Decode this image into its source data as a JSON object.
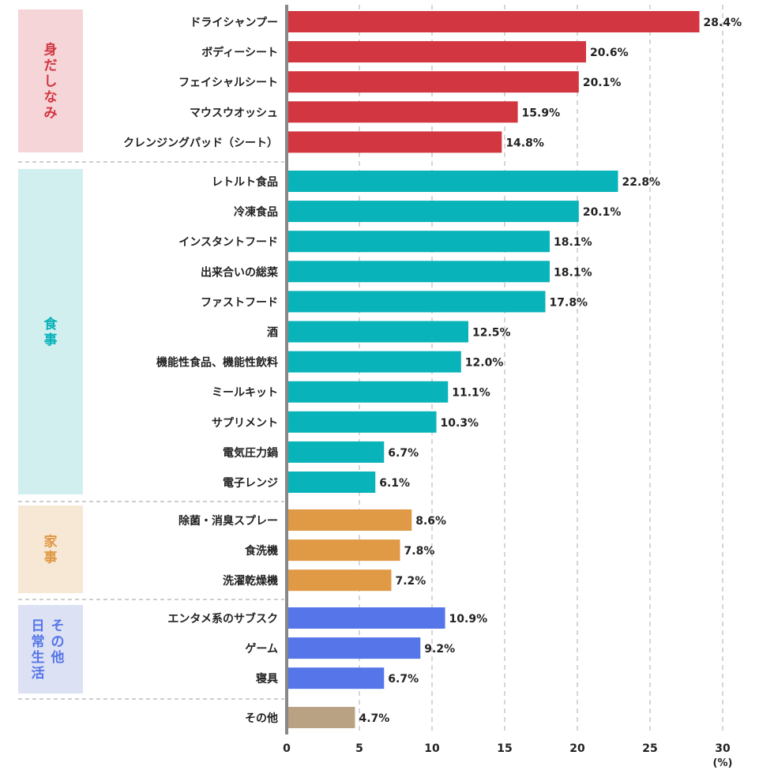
{
  "chart_data": {
    "type": "bar",
    "orientation": "horizontal",
    "xlim": [
      0,
      30
    ],
    "xticks": [
      0,
      5,
      10,
      15,
      20,
      25,
      30
    ],
    "xunit": "(%)",
    "grid": "vertical dashed",
    "groups": [
      {
        "label": "身だしなみ",
        "color": "#d23640",
        "bg": "#f5d5d8",
        "label_color": "#d23640",
        "items": [
          {
            "label": "ドライシャンプー",
            "value": 28.4,
            "value_label": "28.4%"
          },
          {
            "label": "ボディーシート",
            "value": 20.6,
            "value_label": "20.6%"
          },
          {
            "label": "フェイシャルシート",
            "value": 20.1,
            "value_label": "20.1%"
          },
          {
            "label": "マウスウオッシュ",
            "value": 15.9,
            "value_label": "15.9%"
          },
          {
            "label": "クレンジングパッド（シート）",
            "value": 14.8,
            "value_label": "14.8%"
          }
        ]
      },
      {
        "label": "食事",
        "color": "#08b3b9",
        "bg": "#d2efef",
        "label_color": "#08b3b9",
        "items": [
          {
            "label": "レトルト食品",
            "value": 22.8,
            "value_label": "22.8%"
          },
          {
            "label": "冷凍食品",
            "value": 20.1,
            "value_label": "20.1%"
          },
          {
            "label": "インスタントフード",
            "value": 18.1,
            "value_label": "18.1%"
          },
          {
            "label": "出来合いの総菜",
            "value": 18.1,
            "value_label": "18.1%"
          },
          {
            "label": "ファストフード",
            "value": 17.8,
            "value_label": "17.8%"
          },
          {
            "label": "酒",
            "value": 12.5,
            "value_label": "12.5%"
          },
          {
            "label": "機能性食品、機能性飲料",
            "value": 12.0,
            "value_label": "12.0%"
          },
          {
            "label": "ミールキット",
            "value": 11.1,
            "value_label": "11.1%"
          },
          {
            "label": "サプリメント",
            "value": 10.3,
            "value_label": "10.3%"
          },
          {
            "label": "電気圧力鍋",
            "value": 6.7,
            "value_label": "6.7%"
          },
          {
            "label": "電子レンジ",
            "value": 6.1,
            "value_label": "6.1%"
          }
        ]
      },
      {
        "label": "家事",
        "color": "#e09945",
        "bg": "#f7e8d6",
        "label_color": "#e09945",
        "items": [
          {
            "label": "除菌・消臭スプレー",
            "value": 8.6,
            "value_label": "8.6%"
          },
          {
            "label": "食洗機",
            "value": 7.8,
            "value_label": "7.8%"
          },
          {
            "label": "洗濯乾燥機",
            "value": 7.2,
            "value_label": "7.2%"
          }
        ]
      },
      {
        "label": "その他日常生活",
        "label_columns": [
          "その他",
          "日常生活"
        ],
        "color": "#5575e8",
        "bg": "#dce1f4",
        "label_color": "#5575e8",
        "items": [
          {
            "label": "エンタメ系のサブスク",
            "value": 10.9,
            "value_label": "10.9%"
          },
          {
            "label": "ゲーム",
            "value": 9.2,
            "value_label": "9.2%"
          },
          {
            "label": "寝具",
            "value": 6.7,
            "value_label": "6.7%"
          }
        ]
      },
      {
        "label": "",
        "color": "#b9a284",
        "bg": "",
        "label_color": "",
        "items": [
          {
            "label": "その他",
            "value": 4.7,
            "value_label": "4.7%"
          }
        ]
      }
    ]
  }
}
